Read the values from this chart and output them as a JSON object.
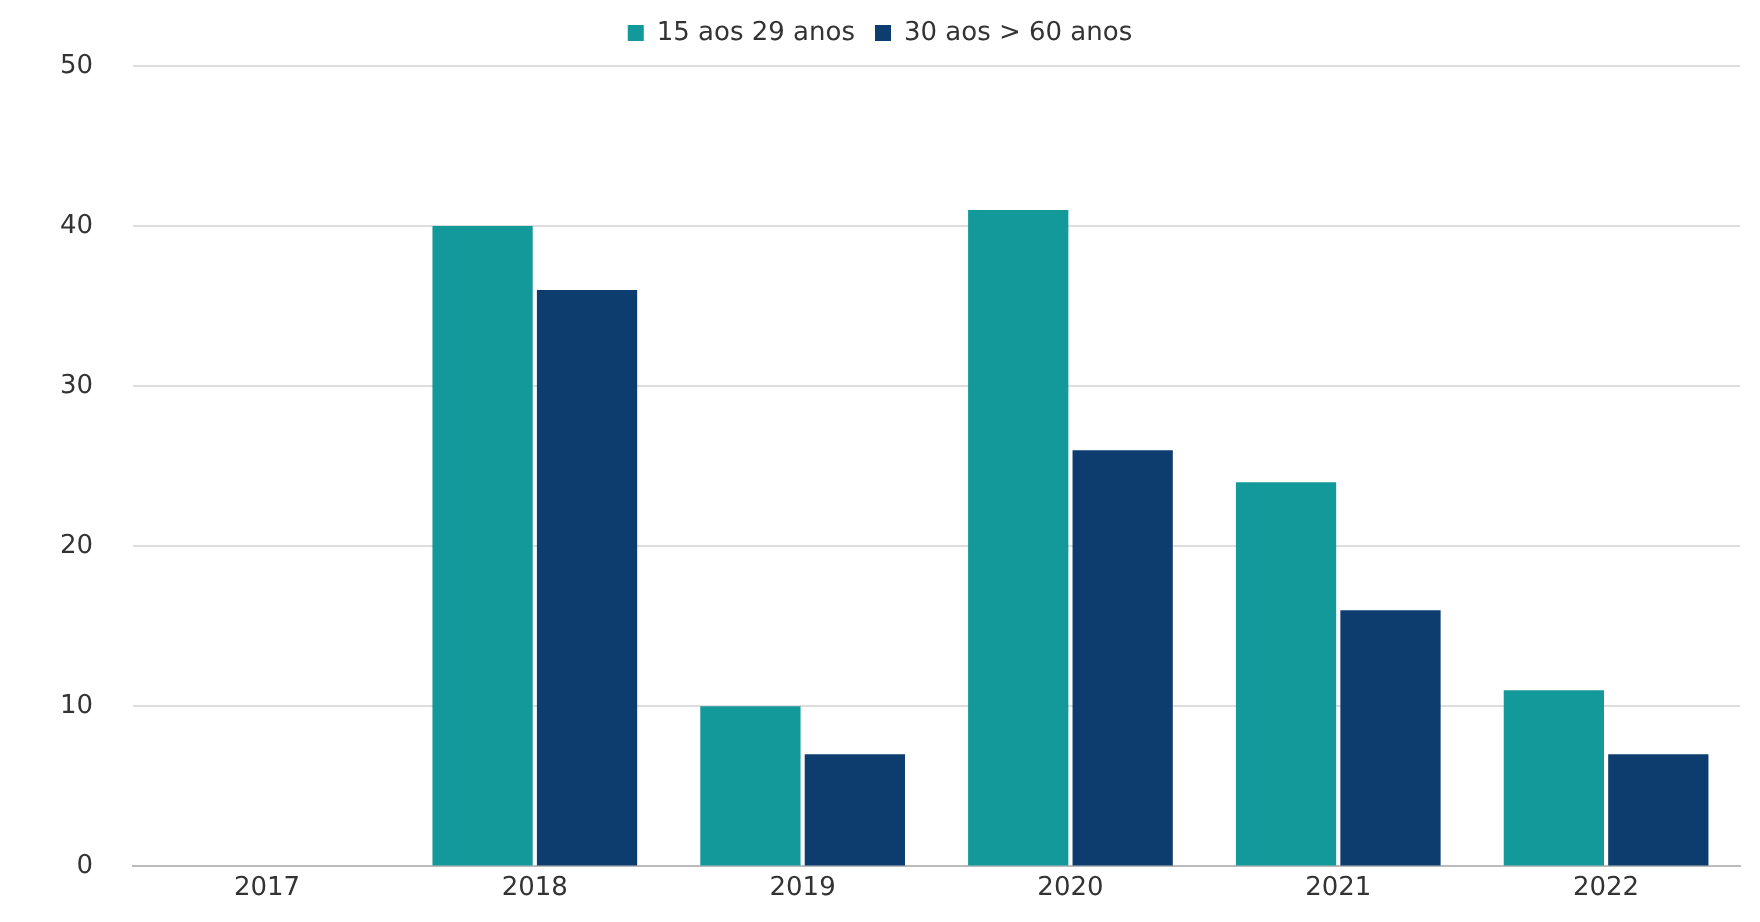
{
  "chart_data": {
    "type": "bar",
    "categories": [
      "2017",
      "2018",
      "2019",
      "2020",
      "2021",
      "2022"
    ],
    "series": [
      {
        "name": "15 aos 29 anos",
        "color": "#14999a",
        "values": [
          0,
          40,
          10,
          41,
          24,
          11
        ]
      },
      {
        "name": "30 aos > 60 anos",
        "color": "#0d3d6e",
        "values": [
          0,
          36,
          7,
          26,
          16,
          7
        ]
      }
    ],
    "ylim": [
      0,
      50
    ],
    "yticks": [
      0,
      10,
      20,
      30,
      40,
      50
    ],
    "grid": "y",
    "legend": "top"
  }
}
